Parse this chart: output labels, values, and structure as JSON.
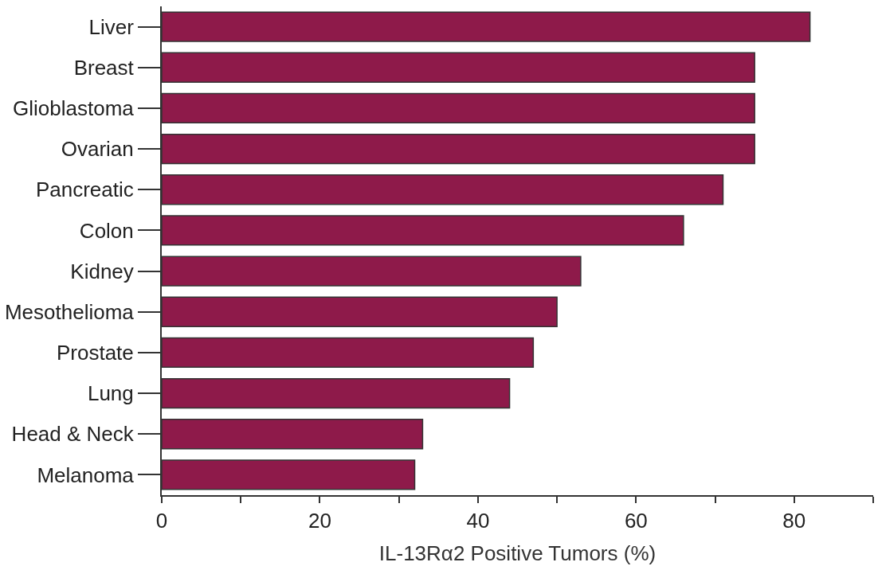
{
  "chart_data": {
    "type": "bar",
    "orientation": "horizontal",
    "xlabel": "IL-13Rα2 Positive Tumors (%)",
    "categories": [
      "Liver",
      "Breast",
      "Glioblastoma",
      "Ovarian",
      "Pancreatic",
      "Colon",
      "Kidney",
      "Mesothelioma",
      "Prostate",
      "Lung",
      "Head & Neck",
      "Melanoma"
    ],
    "values": [
      82,
      75,
      75,
      75,
      71,
      66,
      53,
      50,
      47,
      44,
      33,
      32
    ],
    "color": "#8e1a4a",
    "xlim": [
      0,
      90
    ],
    "xticks": [
      0,
      {
        "value": 10,
        "label": null
      },
      20,
      {
        "value": 30,
        "label": null
      },
      40,
      {
        "value": 50,
        "label": null
      },
      60,
      {
        "value": 70,
        "label": null
      },
      80,
      {
        "value": 90,
        "label": null
      }
    ],
    "legend": false
  }
}
